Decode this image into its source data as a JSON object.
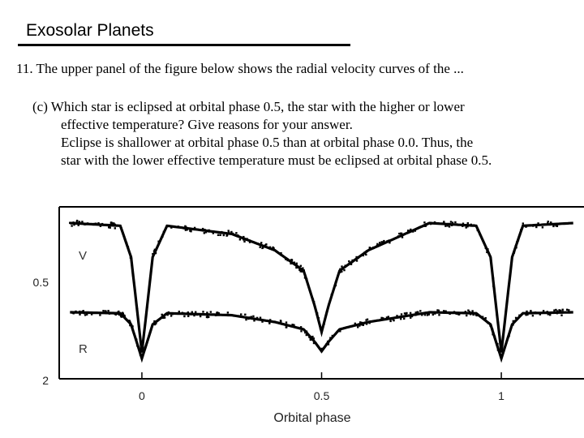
{
  "slide": {
    "title": "Exosolar Planets"
  },
  "question": {
    "text": "11. The upper panel of the figure below shows the radial velocity curves of the ..."
  },
  "part_c": {
    "question_line1": "(c) Which star is eclipsed at orbital phase 0.5, the star with the higher or lower",
    "question_line2": "effective temperature?  Give reasons for your answer.",
    "answer_line1": "Eclipse is shallower at orbital phase 0.5 than at orbital phase 0.0.  Thus, the",
    "answer_line2": "star with the lower effective temperature must be eclipsed at orbital phase 0.5."
  },
  "chart_data": {
    "type": "line",
    "xlabel": "Orbital phase",
    "ylabel": "",
    "x_ticks": [
      "0",
      "0.5",
      "1"
    ],
    "y_ticks": [
      "0.5",
      "2"
    ],
    "xlim": [
      -0.23,
      1.23
    ],
    "series": [
      {
        "name": "V",
        "color": "#000000",
        "points": [
          [
            -0.2,
            0.0
          ],
          [
            -0.06,
            0.02
          ],
          [
            -0.03,
            0.25
          ],
          [
            0.0,
            0.95
          ],
          [
            0.03,
            0.25
          ],
          [
            0.07,
            0.02
          ],
          [
            0.25,
            0.08
          ],
          [
            0.37,
            0.2
          ],
          [
            0.45,
            0.35
          ],
          [
            0.48,
            0.6
          ],
          [
            0.5,
            0.8
          ],
          [
            0.52,
            0.6
          ],
          [
            0.55,
            0.35
          ],
          [
            0.63,
            0.2
          ],
          [
            0.8,
            0.0
          ],
          [
            0.93,
            0.02
          ],
          [
            0.97,
            0.25
          ],
          [
            1.0,
            0.95
          ],
          [
            1.03,
            0.25
          ],
          [
            1.06,
            0.02
          ],
          [
            1.2,
            0.0
          ]
        ]
      },
      {
        "name": "R",
        "color": "#000000",
        "points": [
          [
            -0.2,
            0.0
          ],
          [
            -0.06,
            0.02
          ],
          [
            -0.03,
            0.25
          ],
          [
            0.0,
            0.95
          ],
          [
            0.03,
            0.25
          ],
          [
            0.07,
            0.02
          ],
          [
            0.25,
            0.06
          ],
          [
            0.37,
            0.2
          ],
          [
            0.45,
            0.35
          ],
          [
            0.48,
            0.6
          ],
          [
            0.5,
            0.8
          ],
          [
            0.52,
            0.6
          ],
          [
            0.55,
            0.35
          ],
          [
            0.63,
            0.2
          ],
          [
            0.8,
            0.0
          ],
          [
            0.93,
            0.02
          ],
          [
            0.97,
            0.25
          ],
          [
            1.0,
            0.95
          ],
          [
            1.03,
            0.25
          ],
          [
            1.06,
            0.02
          ],
          [
            1.2,
            0.0
          ]
        ]
      }
    ],
    "grid": false,
    "legend": "inline"
  }
}
